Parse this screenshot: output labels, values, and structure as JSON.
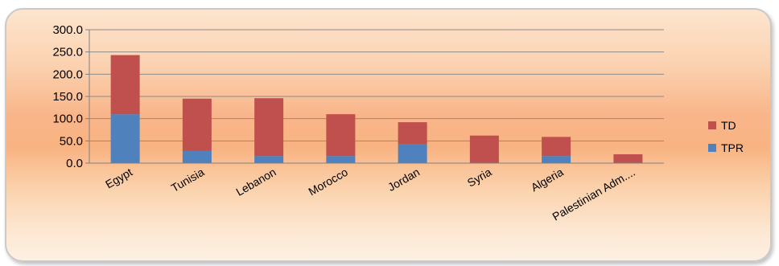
{
  "chart_data": {
    "type": "bar",
    "stacked": true,
    "categories": [
      "Egypt",
      "Tunisia",
      "Lebanon",
      "Morocco",
      "Jordan",
      "Syria",
      "Algeria",
      "Palestinian Adm...."
    ],
    "series": [
      {
        "name": "TPR",
        "color": "#4f81bd",
        "values": [
          110,
          28,
          16,
          16,
          42,
          0,
          16,
          0
        ]
      },
      {
        "name": "TD",
        "color": "#c0504d",
        "values": [
          133,
          117,
          130,
          94,
          50,
          62,
          43,
          20
        ]
      }
    ],
    "yticks": [
      "0.0",
      "50.0",
      "100.0",
      "150.0",
      "200.0",
      "250.0",
      "300.0"
    ],
    "ylim": [
      0,
      300
    ],
    "grid": true,
    "legend_position": "right"
  }
}
